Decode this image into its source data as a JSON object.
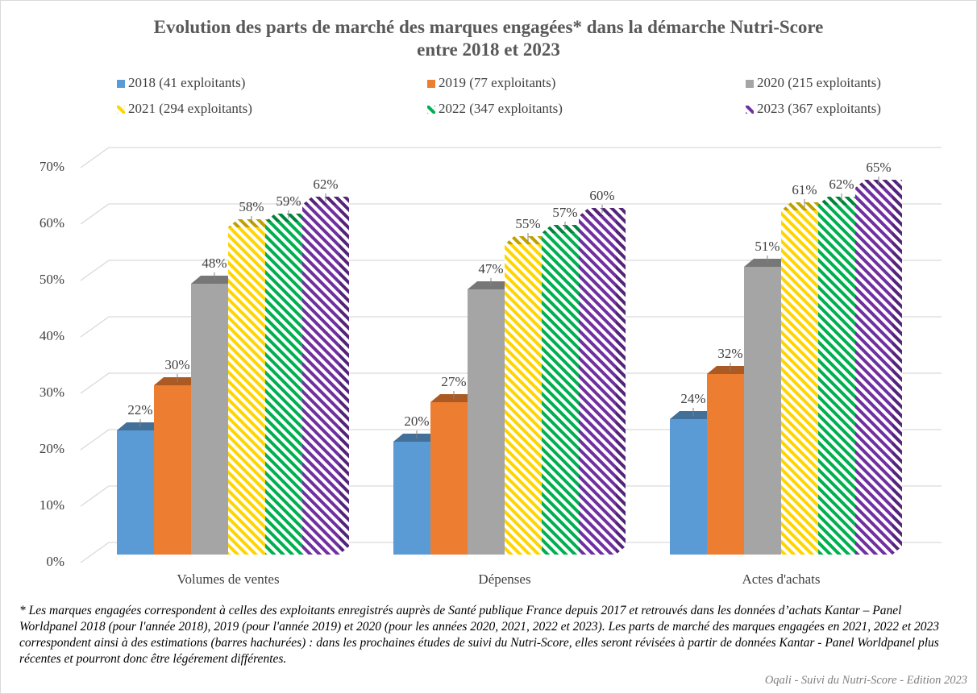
{
  "chart_data": {
    "type": "bar3d",
    "title": "Evolution des parts de marché des marques engagées* dans la démarche Nutri-Score\nentre 2018 et 2023",
    "categories": [
      "Volumes de ventes",
      "Dépenses",
      "Actes d'achats"
    ],
    "series": [
      {
        "name": "2018 (41 exploitants)",
        "color": "#5b9bd5",
        "hatch": false,
        "values": [
          22,
          20,
          24
        ],
        "value_labels": [
          "22%",
          "20%",
          "24%"
        ]
      },
      {
        "name": "2019 (77 exploitants)",
        "color": "#ed7d31",
        "hatch": false,
        "values": [
          30,
          27,
          32
        ],
        "value_labels": [
          "30%",
          "27%",
          "32%"
        ]
      },
      {
        "name": "2020 (215 exploitants)",
        "color": "#a5a5a5",
        "hatch": false,
        "values": [
          48,
          47,
          51
        ],
        "value_labels": [
          "48%",
          "47%",
          "51%"
        ]
      },
      {
        "name": "2021 (294 exploitants)",
        "color": "#ffd500",
        "hatch": true,
        "values": [
          58,
          55,
          61
        ],
        "value_labels": [
          "58%",
          "55%",
          "61%"
        ]
      },
      {
        "name": "2022 (347 exploitants)",
        "color": "#00b050",
        "hatch": true,
        "values": [
          59,
          57,
          62
        ],
        "value_labels": [
          "59%",
          "57%",
          "62%"
        ]
      },
      {
        "name": "2023 (367 exploitants)",
        "color": "#7030a0",
        "hatch": true,
        "values": [
          62,
          60,
          65
        ],
        "value_labels": [
          "62%",
          "60%",
          "65%"
        ]
      }
    ],
    "ylim": [
      0,
      70
    ],
    "yticks": [
      {
        "value": 0,
        "label": "0%"
      },
      {
        "value": 10,
        "label": "10%"
      },
      {
        "value": 20,
        "label": "20%"
      },
      {
        "value": 30,
        "label": "30%"
      },
      {
        "value": 40,
        "label": "40%"
      },
      {
        "value": 50,
        "label": "50%"
      },
      {
        "value": 60,
        "label": "60%"
      },
      {
        "value": 70,
        "label": "70%"
      }
    ],
    "grid": true,
    "footnote": "* Les marques engagées correspondent à celles des exploitants enregistrés auprès de Santé publique France depuis 2017 et retrouvés dans les données d’achats Kantar – Panel Worldpanel 2018 (pour l'année 2018), 2019 (pour l'année 2019) et 2020 (pour les années 2020, 2021, 2022 et 2023). Les parts de marché des marques engagées en 2021, 2022 et 2023 correspondent ainsi à des estimations (barres hachurées) : dans les prochaines études de suivi du Nutri-Score, elles seront révisées à partir de données Kantar - Panel Worldpanel plus récentes et pourront donc être légérement différentes.",
    "source": "Oqali - Suivi du Nutri-Score - Edition 2023"
  }
}
